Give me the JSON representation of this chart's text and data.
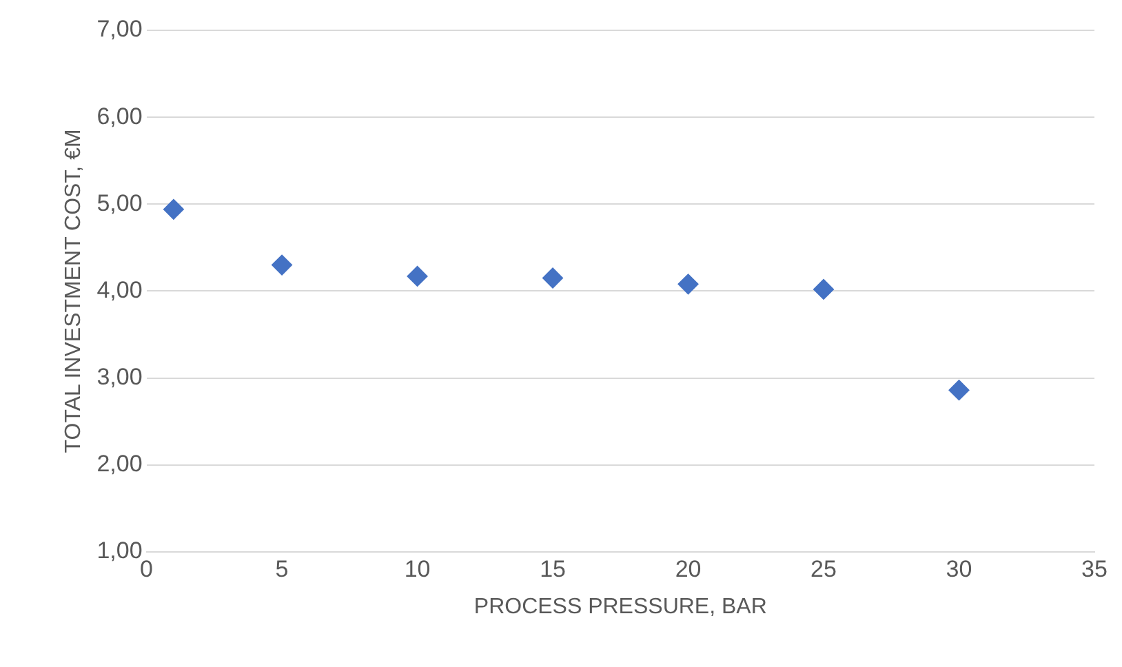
{
  "chart_data": {
    "type": "scatter",
    "xlabel": "PROCESS PRESSURE, BAR",
    "ylabel": "TOTAL INVESTMENT COST, €M",
    "x": [
      1,
      5,
      10,
      15,
      20,
      25,
      30
    ],
    "series": [
      {
        "color": "#4472c4",
        "values": [
          4.94,
          4.3,
          4.17,
          4.15,
          4.08,
          4.02,
          2.86
        ]
      }
    ],
    "xlim": [
      0,
      35
    ],
    "xticks": [
      0,
      5,
      10,
      15,
      20,
      25,
      30,
      35
    ],
    "ylim": [
      1,
      7
    ],
    "yticks": [
      {
        "value": 1,
        "label": "1,00"
      },
      {
        "value": 2,
        "label": "2,00"
      },
      {
        "value": 3,
        "label": "3,00"
      },
      {
        "value": 4,
        "label": "4,00"
      },
      {
        "value": 5,
        "label": "5,00"
      },
      {
        "value": 6,
        "label": "6,00"
      },
      {
        "value": 7,
        "label": "7,00"
      }
    ],
    "grid": "y",
    "marker": "diamond",
    "legend": false
  }
}
